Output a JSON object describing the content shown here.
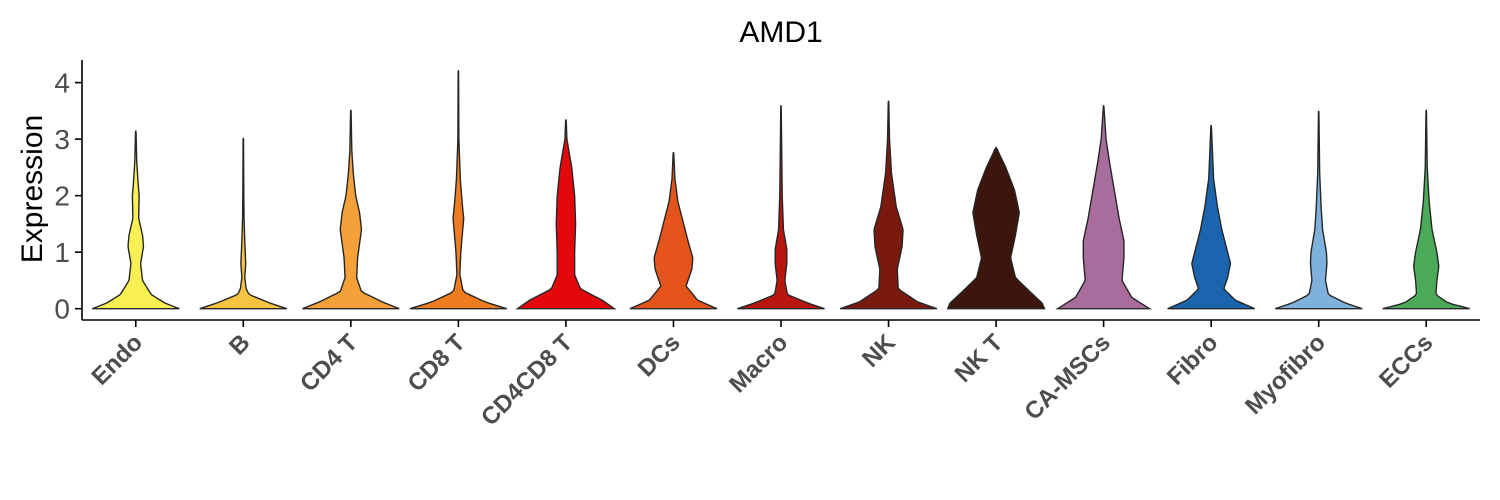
{
  "chart_data": {
    "type": "violin",
    "title": "AMD1",
    "xlabel": "",
    "ylabel": "Expression",
    "ylim": [
      -0.2,
      4.4
    ],
    "yticks": [
      0,
      1,
      2,
      3,
      4
    ],
    "grid": false,
    "legend": "none",
    "categories": [
      "Endo",
      "B",
      "CD4 T",
      "CD8 T",
      "CD4CD8 T",
      "DCs",
      "Macro",
      "NK",
      "NK T",
      "CA-MSCs",
      "Fibro",
      "Myofibro",
      "ECCs"
    ],
    "colors": [
      "#f9f154",
      "#f6c342",
      "#f4a13a",
      "#ef7d1f",
      "#e3080e",
      "#e5541a",
      "#b9150f",
      "#7a1a0f",
      "#3c150c",
      "#a86d9d",
      "#1a65ae",
      "#7fb1dd",
      "#4aaa59"
    ],
    "max_values": [
      3.15,
      3.02,
      3.52,
      4.22,
      3.35,
      2.77,
      3.6,
      3.68,
      2.85,
      3.6,
      3.25,
      3.5,
      3.52
    ],
    "density_profiles": [
      [
        [
          0,
          0.9
        ],
        [
          0.1,
          0.6
        ],
        [
          0.25,
          0.32
        ],
        [
          0.5,
          0.14
        ],
        [
          0.8,
          0.1
        ],
        [
          1.1,
          0.16
        ],
        [
          1.3,
          0.14
        ],
        [
          1.6,
          0.06
        ],
        [
          2.0,
          0.07
        ],
        [
          2.2,
          0.05
        ],
        [
          2.6,
          0.02
        ],
        [
          3.15,
          0.005
        ]
      ],
      [
        [
          0,
          0.9
        ],
        [
          0.1,
          0.55
        ],
        [
          0.25,
          0.12
        ],
        [
          0.35,
          0.06
        ],
        [
          0.55,
          0.03
        ],
        [
          0.8,
          0.05
        ],
        [
          1.2,
          0.03
        ],
        [
          1.6,
          0.015
        ],
        [
          2.0,
          0.01
        ],
        [
          3.02,
          0.004
        ]
      ],
      [
        [
          0,
          1.0
        ],
        [
          0.12,
          0.65
        ],
        [
          0.3,
          0.22
        ],
        [
          0.55,
          0.12
        ],
        [
          0.9,
          0.14
        ],
        [
          1.4,
          0.22
        ],
        [
          1.7,
          0.18
        ],
        [
          2.0,
          0.1
        ],
        [
          2.4,
          0.05
        ],
        [
          2.8,
          0.02
        ],
        [
          3.52,
          0.004
        ]
      ],
      [
        [
          0,
          1.0
        ],
        [
          0.12,
          0.55
        ],
        [
          0.3,
          0.1
        ],
        [
          0.6,
          0.03
        ],
        [
          1.0,
          0.05
        ],
        [
          1.6,
          0.11
        ],
        [
          1.85,
          0.08
        ],
        [
          2.3,
          0.04
        ],
        [
          3.0,
          0.01
        ],
        [
          4.22,
          0.004
        ]
      ],
      [
        [
          0,
          1.0
        ],
        [
          0.15,
          0.75
        ],
        [
          0.35,
          0.3
        ],
        [
          0.6,
          0.18
        ],
        [
          1.0,
          0.18
        ],
        [
          1.5,
          0.2
        ],
        [
          2.0,
          0.18
        ],
        [
          2.5,
          0.12
        ],
        [
          2.8,
          0.06
        ],
        [
          3.0,
          0.02
        ],
        [
          3.35,
          0.005
        ]
      ],
      [
        [
          0,
          0.9
        ],
        [
          0.15,
          0.5
        ],
        [
          0.4,
          0.26
        ],
        [
          0.7,
          0.38
        ],
        [
          0.9,
          0.4
        ],
        [
          1.2,
          0.3
        ],
        [
          1.6,
          0.18
        ],
        [
          1.9,
          0.09
        ],
        [
          2.3,
          0.03
        ],
        [
          2.77,
          0.005
        ]
      ],
      [
        [
          0,
          0.9
        ],
        [
          0.1,
          0.55
        ],
        [
          0.25,
          0.13
        ],
        [
          0.5,
          0.08
        ],
        [
          0.8,
          0.12
        ],
        [
          1.05,
          0.12
        ],
        [
          1.4,
          0.05
        ],
        [
          2.0,
          0.025
        ],
        [
          3.6,
          0.004
        ]
      ],
      [
        [
          0,
          1.0
        ],
        [
          0.12,
          0.6
        ],
        [
          0.35,
          0.2
        ],
        [
          0.7,
          0.18
        ],
        [
          1.1,
          0.28
        ],
        [
          1.4,
          0.3
        ],
        [
          1.8,
          0.16
        ],
        [
          2.4,
          0.06
        ],
        [
          3.0,
          0.02
        ],
        [
          3.68,
          0.005
        ]
      ],
      [
        [
          0,
          1.0
        ],
        [
          0.1,
          0.95
        ],
        [
          0.3,
          0.7
        ],
        [
          0.55,
          0.4
        ],
        [
          0.9,
          0.3
        ],
        [
          1.3,
          0.4
        ],
        [
          1.7,
          0.48
        ],
        [
          2.1,
          0.38
        ],
        [
          2.5,
          0.2
        ],
        [
          2.75,
          0.06
        ],
        [
          2.85,
          0.01
        ]
      ],
      [
        [
          0,
          0.95
        ],
        [
          0.2,
          0.58
        ],
        [
          0.5,
          0.38
        ],
        [
          0.9,
          0.42
        ],
        [
          1.2,
          0.42
        ],
        [
          1.6,
          0.32
        ],
        [
          2.1,
          0.22
        ],
        [
          2.6,
          0.12
        ],
        [
          3.0,
          0.05
        ],
        [
          3.6,
          0.004
        ]
      ],
      [
        [
          0,
          0.9
        ],
        [
          0.15,
          0.5
        ],
        [
          0.35,
          0.26
        ],
        [
          0.55,
          0.34
        ],
        [
          0.8,
          0.4
        ],
        [
          1.0,
          0.34
        ],
        [
          1.4,
          0.22
        ],
        [
          1.8,
          0.13
        ],
        [
          2.3,
          0.05
        ],
        [
          3.25,
          0.004
        ]
      ],
      [
        [
          0,
          0.9
        ],
        [
          0.1,
          0.55
        ],
        [
          0.25,
          0.2
        ],
        [
          0.5,
          0.14
        ],
        [
          0.8,
          0.17
        ],
        [
          1.0,
          0.16
        ],
        [
          1.4,
          0.08
        ],
        [
          1.8,
          0.05
        ],
        [
          2.4,
          0.02
        ],
        [
          3.5,
          0.004
        ]
      ],
      [
        [
          0,
          0.9
        ],
        [
          0.1,
          0.45
        ],
        [
          0.25,
          0.2
        ],
        [
          0.5,
          0.22
        ],
        [
          0.75,
          0.26
        ],
        [
          1.0,
          0.22
        ],
        [
          1.4,
          0.12
        ],
        [
          1.9,
          0.06
        ],
        [
          2.5,
          0.02
        ],
        [
          3.52,
          0.004
        ]
      ]
    ]
  }
}
